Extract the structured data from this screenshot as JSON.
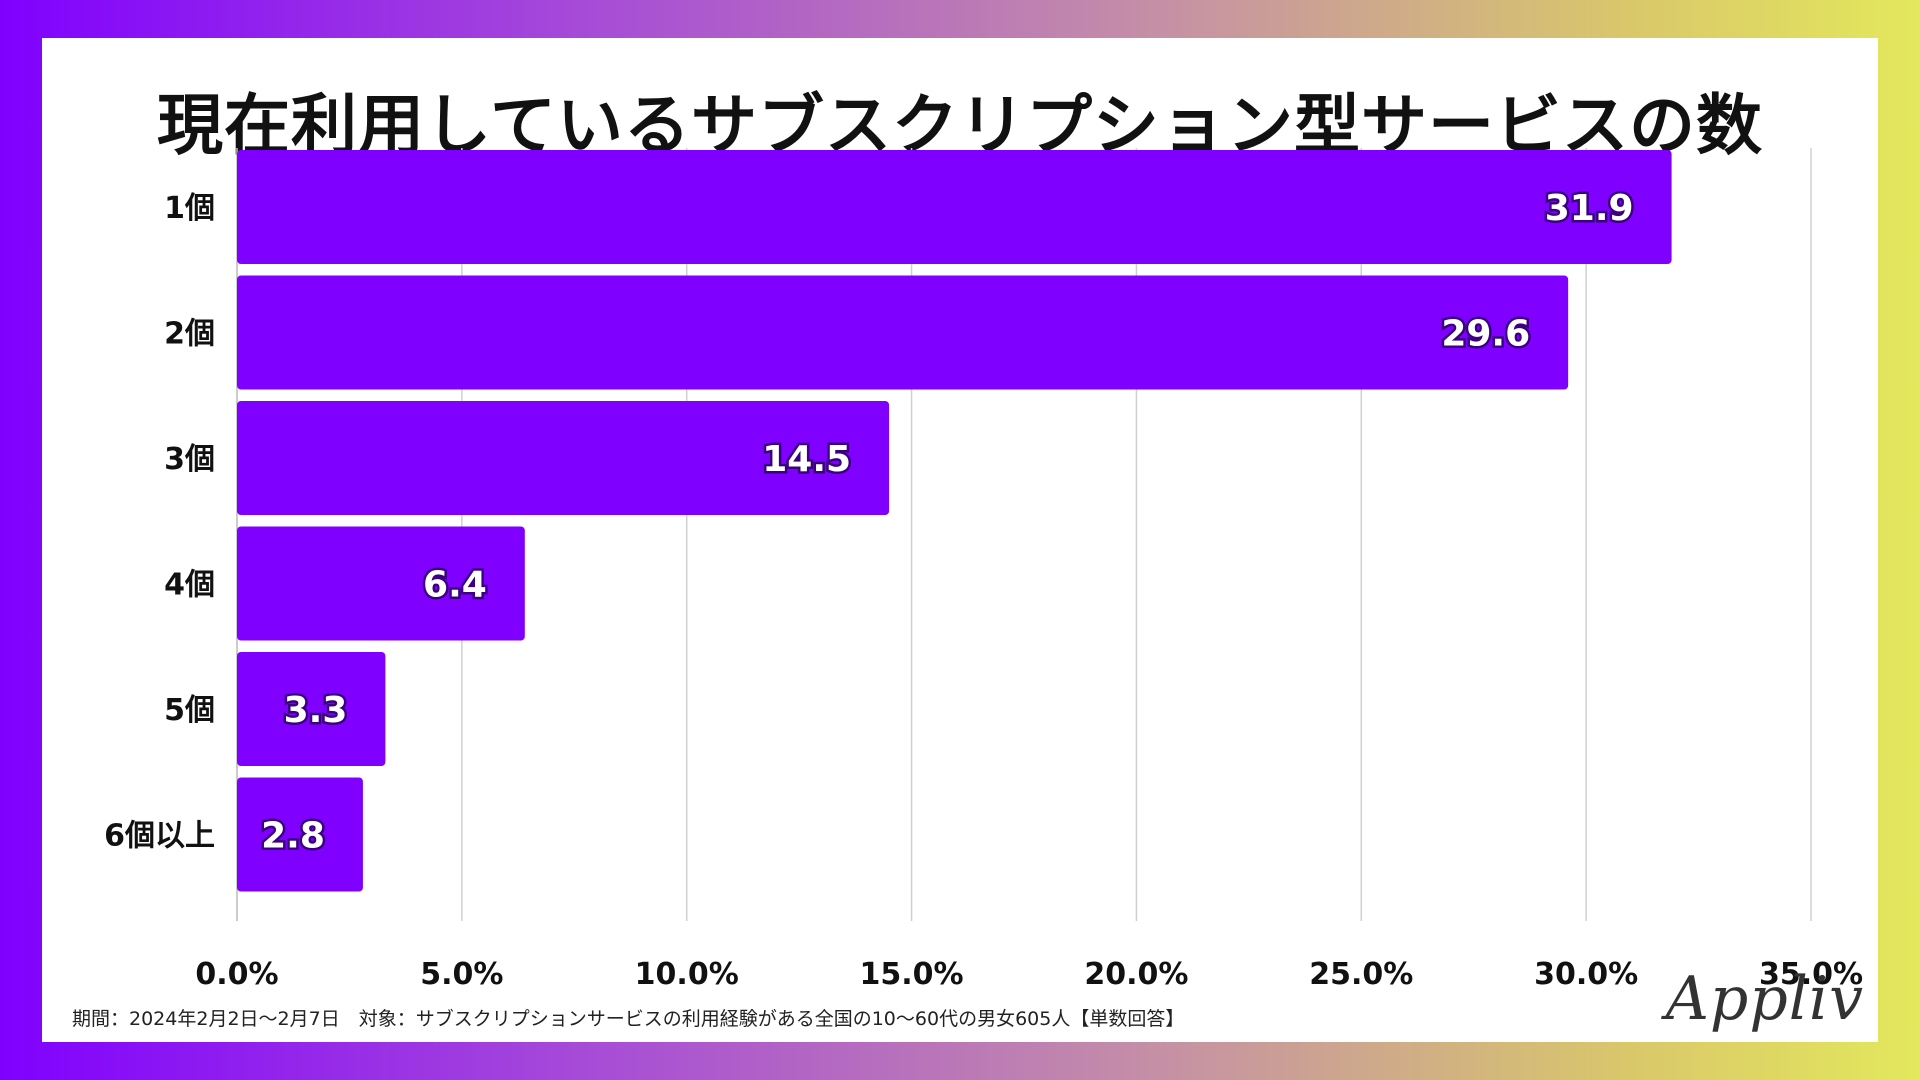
{
  "chart_data": {
    "type": "bar",
    "orientation": "horizontal",
    "title": "現在利用しているサブスクリプション型サービスの数",
    "categories": [
      "1個",
      "2個",
      "3個",
      "4個",
      "5個",
      "6個以上"
    ],
    "values": [
      31.9,
      29.6,
      14.5,
      6.4,
      3.3,
      2.8
    ],
    "value_labels": [
      "31.9",
      "29.6",
      "14.5",
      "6.4",
      "3.3",
      "2.8"
    ],
    "xlim": [
      0,
      35
    ],
    "xticks": [
      0,
      5,
      10,
      15,
      20,
      25,
      30,
      35
    ],
    "xtick_labels": [
      "0.0%",
      "5.0%",
      "10.0%",
      "15.0%",
      "20.0%",
      "25.0%",
      "30.0%",
      "35.0%"
    ],
    "xlabel": "",
    "ylabel": "",
    "grid": true,
    "bar_color": "#8000ff",
    "grid_color": "#d0d0d0"
  },
  "footnote": "期間：2024年2月2日〜2月7日　対象：サブスクリプションサービスの利用経験がある全国の10〜60代の男女605人【単数回答】",
  "logo_text": "Appliv",
  "colors": {
    "gradient_start": "#8000ff",
    "gradient_end": "#e3e85c",
    "card_bg": "#ffffff"
  }
}
